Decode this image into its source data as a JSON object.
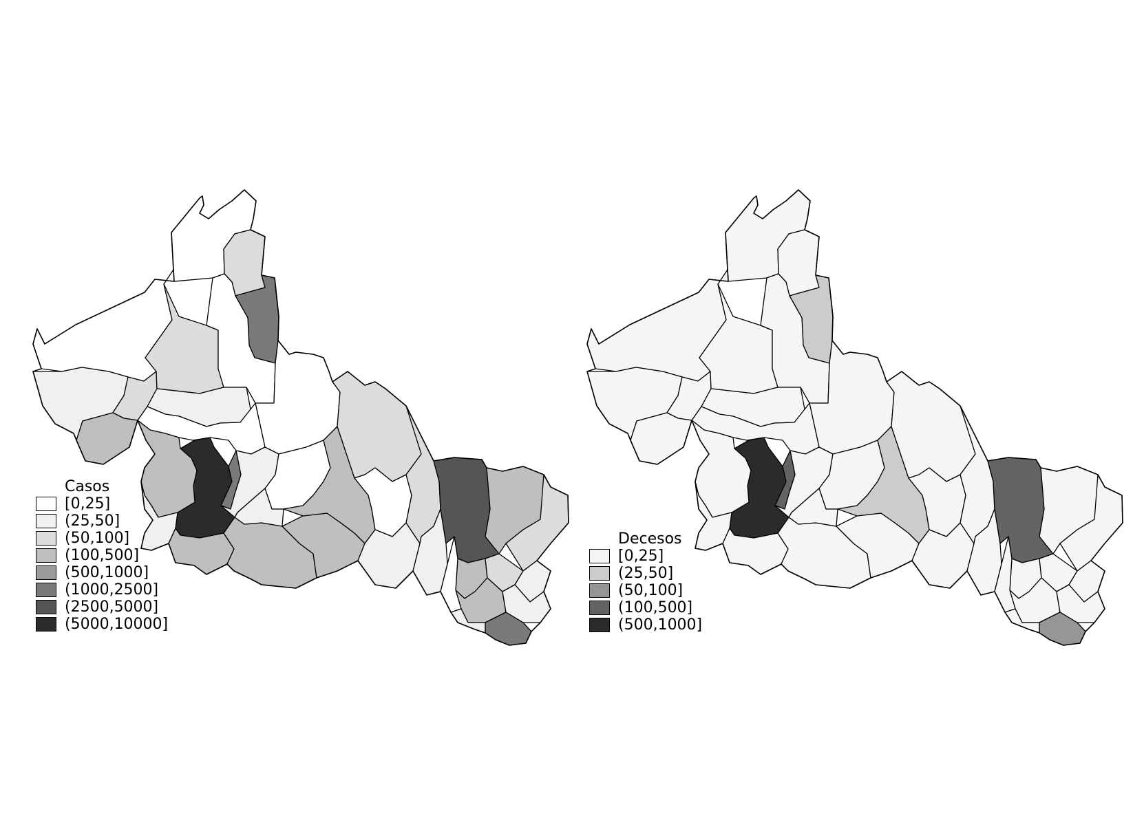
{
  "maps": [
    {
      "id": "casos",
      "legend": {
        "title": "Casos",
        "classes": [
          {
            "label": "[0,25]",
            "color": "#ffffff"
          },
          {
            "label": "(25,50]",
            "color": "#f0f0f0"
          },
          {
            "label": "(50,100]",
            "color": "#dcdcdc"
          },
          {
            "label": "(100,500]",
            "color": "#bfbfbf"
          },
          {
            "label": "(500,1000]",
            "color": "#9b9b9b"
          },
          {
            "label": "(1000,2500]",
            "color": "#7a7a7a"
          },
          {
            "label": "(2500,5000]",
            "color": "#555555"
          },
          {
            "label": "(5000,10000]",
            "color": "#2b2b2b"
          }
        ]
      },
      "regions": [
        {
          "name": "north-tip",
          "class": 0
        },
        {
          "name": "north-coast-west",
          "class": 0
        },
        {
          "name": "north-strip",
          "class": 2
        },
        {
          "name": "north-east-strip",
          "class": 5
        },
        {
          "name": "west-coast",
          "class": 1
        },
        {
          "name": "west-mid-1",
          "class": 2
        },
        {
          "name": "west-mid-2",
          "class": 3
        },
        {
          "name": "west-mid-3",
          "class": 2
        },
        {
          "name": "centre-north",
          "class": 0
        },
        {
          "name": "centre-big",
          "class": 0
        },
        {
          "name": "centre-west-band",
          "class": 1
        },
        {
          "name": "centre-west-band-2",
          "class": 0
        },
        {
          "name": "capital",
          "class": 7
        },
        {
          "name": "capital-east",
          "class": 5
        },
        {
          "name": "capital-west",
          "class": 3
        },
        {
          "name": "south-west-1",
          "class": 1
        },
        {
          "name": "south-west-2",
          "class": 3
        },
        {
          "name": "south-centre-1",
          "class": 3
        },
        {
          "name": "south-centre-2",
          "class": 3
        },
        {
          "name": "centre-south",
          "class": 1
        },
        {
          "name": "centre-mid-1",
          "class": 0
        },
        {
          "name": "centre-mid-2",
          "class": 1
        },
        {
          "name": "middle-big",
          "class": 3
        },
        {
          "name": "east-big",
          "class": 2
        },
        {
          "name": "south-mid-1",
          "class": 0
        },
        {
          "name": "south-mid-2",
          "class": 1
        },
        {
          "name": "east-strip",
          "class": 2
        },
        {
          "name": "east-strip-2",
          "class": 1
        },
        {
          "name": "huasteca-big",
          "class": 6
        },
        {
          "name": "huasteca-east",
          "class": 3
        },
        {
          "name": "huasteca-east-2",
          "class": 2
        },
        {
          "name": "huasteca-south-1",
          "class": 3
        },
        {
          "name": "huasteca-south-2",
          "class": 2
        },
        {
          "name": "huasteca-south-3",
          "class": 1
        },
        {
          "name": "huasteca-south-4",
          "class": 3
        },
        {
          "name": "huasteca-south-5",
          "class": 1
        },
        {
          "name": "huasteca-south-tip",
          "class": 5
        },
        {
          "name": "south-east-1",
          "class": 0
        },
        {
          "name": "south-east-2",
          "class": 1
        }
      ]
    },
    {
      "id": "decesos",
      "legend": {
        "title": "Decesos",
        "classes": [
          {
            "label": "[0,25]",
            "color": "#f5f5f5"
          },
          {
            "label": "(25,50]",
            "color": "#cccccc"
          },
          {
            "label": "(50,100]",
            "color": "#969696"
          },
          {
            "label": "(100,500]",
            "color": "#636363"
          },
          {
            "label": "(500,1000]",
            "color": "#2b2b2b"
          }
        ]
      },
      "regions": [
        {
          "name": "north-tip",
          "class": 0
        },
        {
          "name": "north-coast-west",
          "class": 0
        },
        {
          "name": "north-strip",
          "class": 0
        },
        {
          "name": "north-east-strip",
          "class": 1
        },
        {
          "name": "west-coast",
          "class": 0
        },
        {
          "name": "west-mid-1",
          "class": 0
        },
        {
          "name": "west-mid-2",
          "class": 0
        },
        {
          "name": "west-mid-3",
          "class": 0
        },
        {
          "name": "centre-north",
          "class": 0
        },
        {
          "name": "centre-big",
          "class": 0
        },
        {
          "name": "centre-west-band",
          "class": 0
        },
        {
          "name": "centre-west-band-2",
          "class": 0
        },
        {
          "name": "capital",
          "class": 4
        },
        {
          "name": "capital-east",
          "class": 3
        },
        {
          "name": "capital-west",
          "class": 0
        },
        {
          "name": "south-west-1",
          "class": 0
        },
        {
          "name": "south-west-2",
          "class": 0
        },
        {
          "name": "south-centre-1",
          "class": 0
        },
        {
          "name": "south-centre-2",
          "class": 0
        },
        {
          "name": "centre-south",
          "class": 0
        },
        {
          "name": "centre-mid-1",
          "class": 0
        },
        {
          "name": "centre-mid-2",
          "class": 0
        },
        {
          "name": "middle-big",
          "class": 1
        },
        {
          "name": "east-big",
          "class": 0
        },
        {
          "name": "south-mid-1",
          "class": 0
        },
        {
          "name": "south-mid-2",
          "class": 0
        },
        {
          "name": "east-strip",
          "class": 0
        },
        {
          "name": "east-strip-2",
          "class": 0
        },
        {
          "name": "huasteca-big",
          "class": 3
        },
        {
          "name": "huasteca-east",
          "class": 0
        },
        {
          "name": "huasteca-east-2",
          "class": 0
        },
        {
          "name": "huasteca-south-1",
          "class": 0
        },
        {
          "name": "huasteca-south-2",
          "class": 0
        },
        {
          "name": "huasteca-south-3",
          "class": 0
        },
        {
          "name": "huasteca-south-4",
          "class": 0
        },
        {
          "name": "huasteca-south-5",
          "class": 0
        },
        {
          "name": "huasteca-south-tip",
          "class": 2
        },
        {
          "name": "south-east-1",
          "class": 0
        },
        {
          "name": "south-east-2",
          "class": 0
        }
      ]
    }
  ]
}
